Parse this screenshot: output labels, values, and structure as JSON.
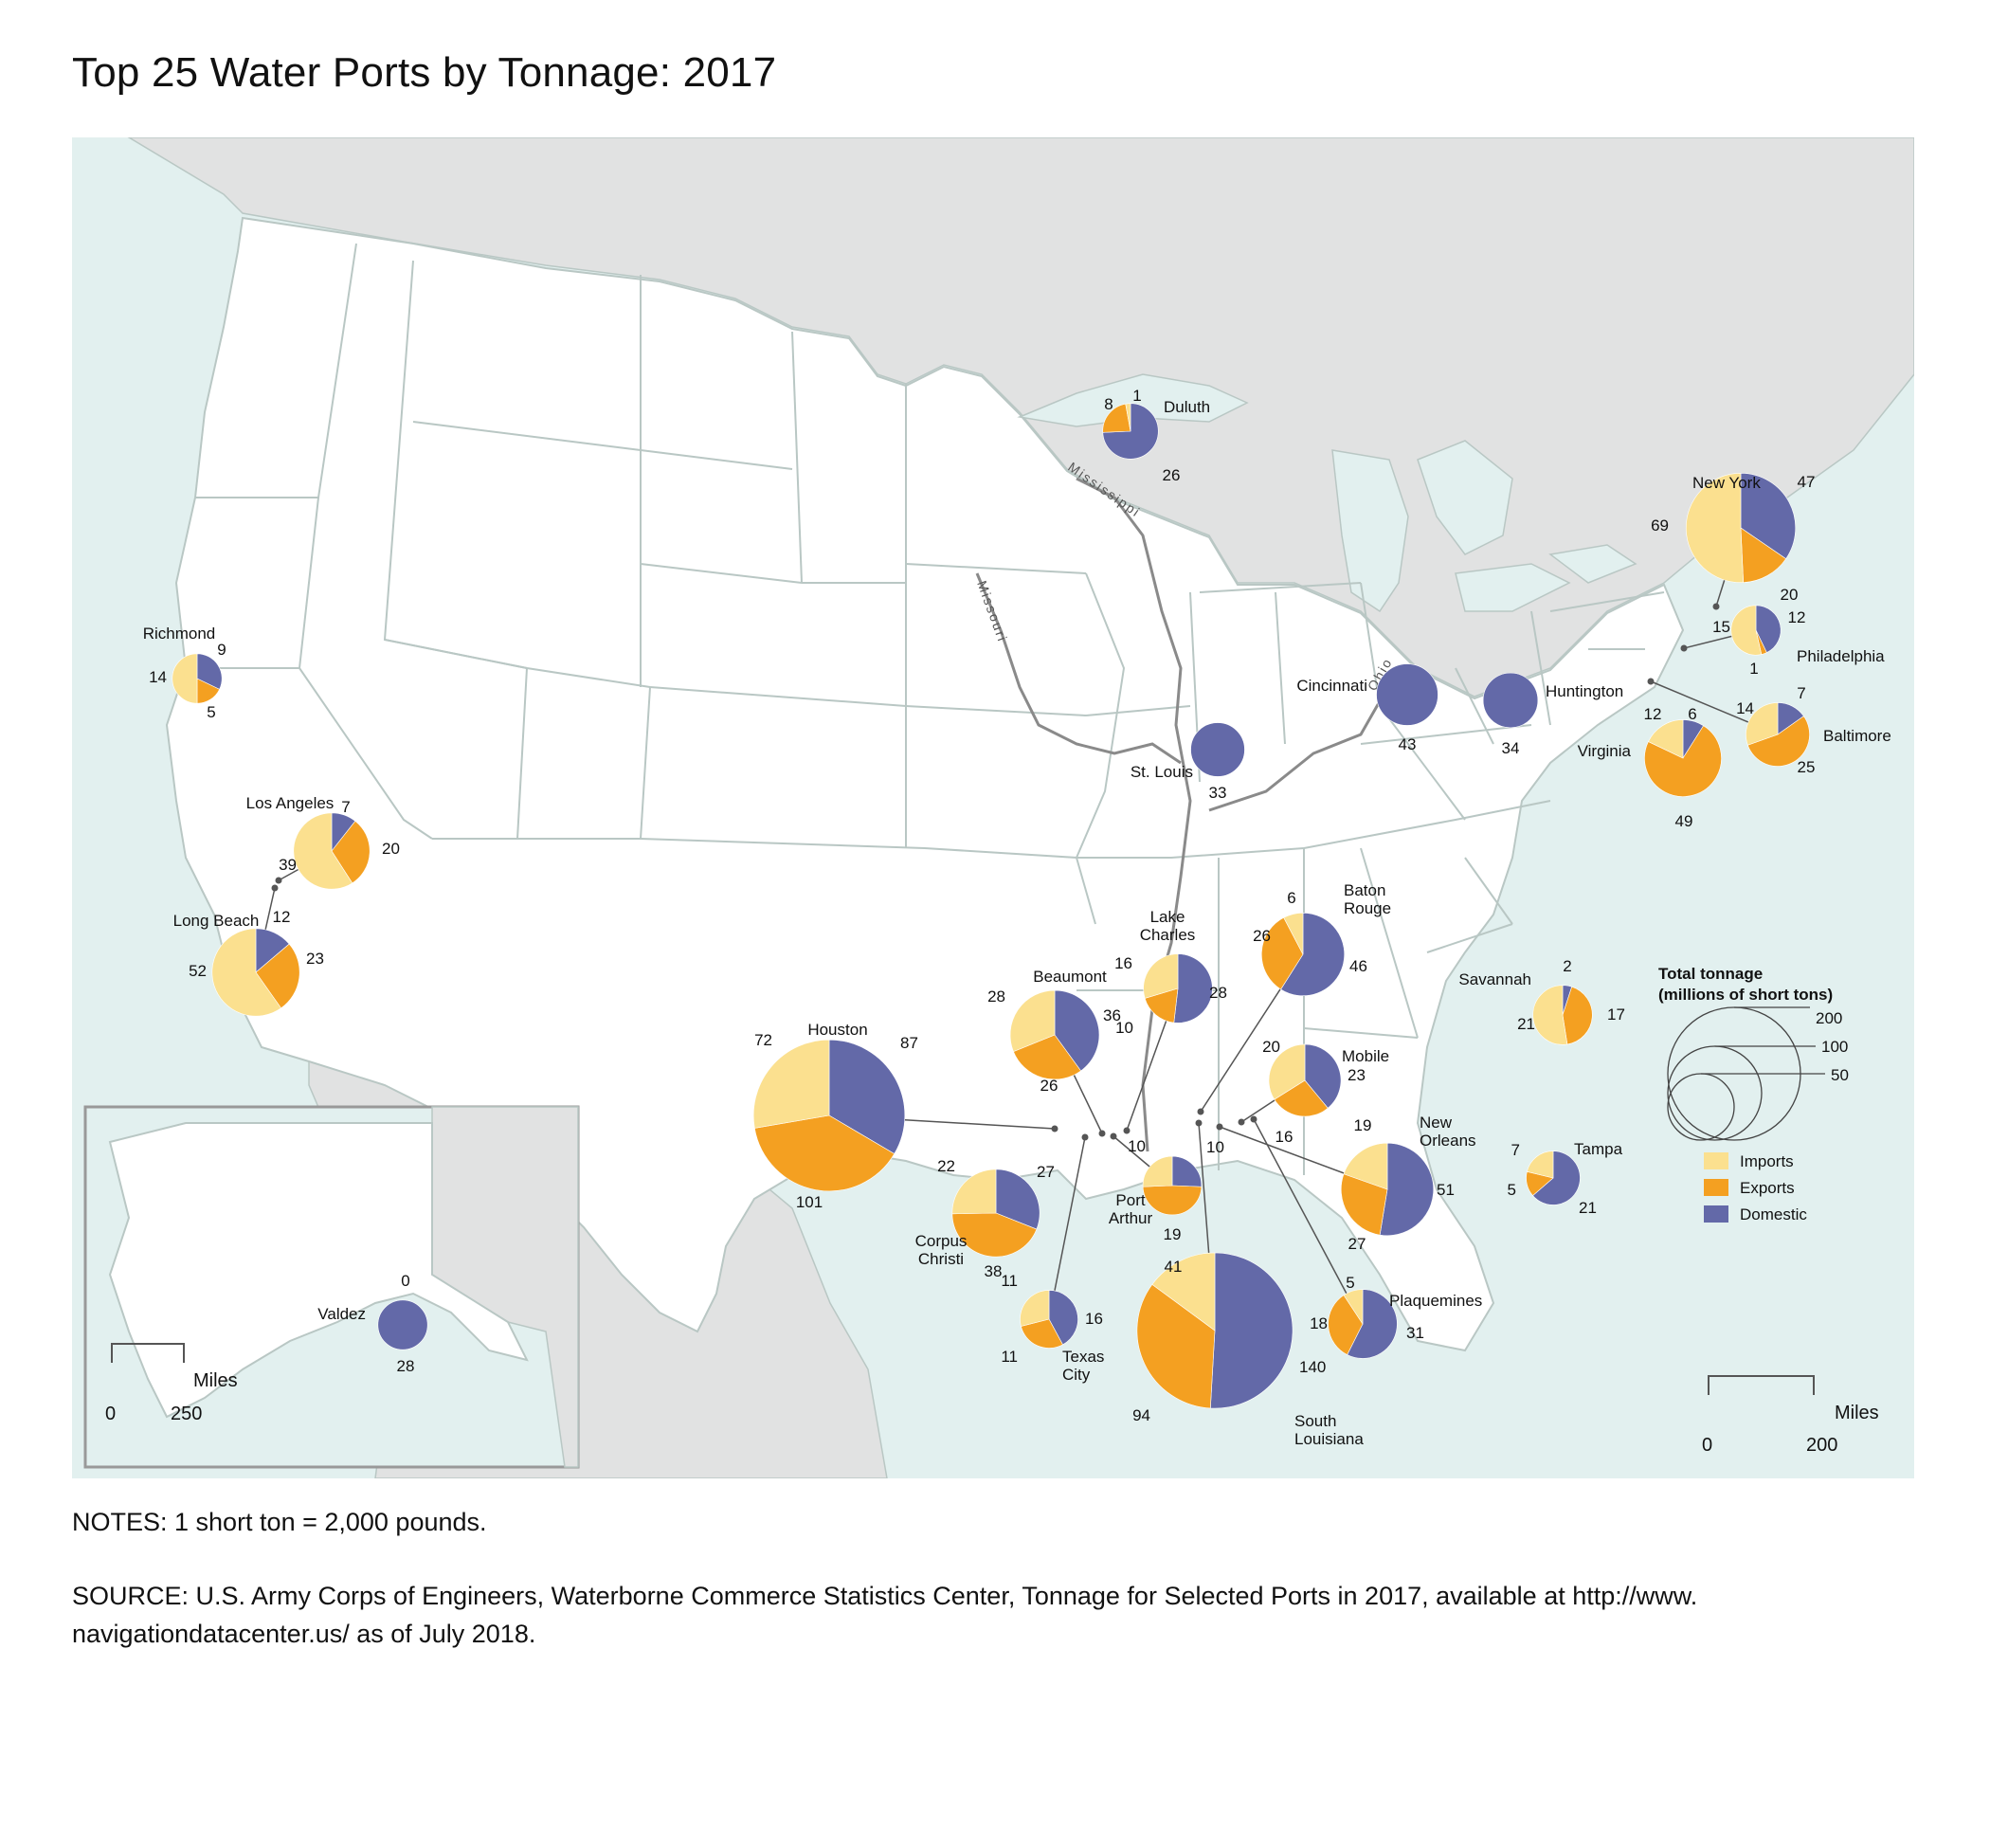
{
  "title": "Top 25 Water Ports by Tonnage: 2017",
  "notes": "NOTES: 1 short ton = 2,000 pounds.",
  "source": "SOURCE: U.S. Army Corps of Engineers, Waterborne Commerce Statistics Center, Tonnage for Selected Ports in 2017, available at http://www. navigationdatacenter.us/ as of July 2018.",
  "colors": {
    "imports": "#fbe08f",
    "exports": "#f4a021",
    "domestic": "#6369a8",
    "water": "#e2f0ef",
    "land_other": "#e1e2e2",
    "land_us": "#ffffff",
    "borders": "#b9c7c4"
  },
  "legend": {
    "title_line1": "Total tonnage",
    "title_line2": "(millions of short tons)",
    "sizes": [
      200,
      100,
      50
    ],
    "items": [
      {
        "label": "Imports",
        "color": "#fbe08f"
      },
      {
        "label": "Exports",
        "color": "#f4a021"
      },
      {
        "label": "Domestic",
        "color": "#6369a8"
      }
    ]
  },
  "scale_main": {
    "label": "Miles",
    "start": "0",
    "end": "200"
  },
  "scale_inset": {
    "label": "Miles",
    "start": "0",
    "end": "250"
  },
  "rivers": [
    "Mississippi",
    "Missouri",
    "Ohio"
  ],
  "chart_data": {
    "type": "pie",
    "title": "Top 25 Water Ports by Tonnage: 2017",
    "units": "millions of short tons",
    "categories": [
      "Imports",
      "Exports",
      "Domestic"
    ],
    "ports": [
      {
        "name": "Duluth",
        "imports": 1,
        "exports": 8,
        "domestic": 26
      },
      {
        "name": "New York",
        "imports": 69,
        "exports": 20,
        "domestic": 47
      },
      {
        "name": "Philadelphia",
        "imports": 15,
        "exports": 1,
        "domestic": 12
      },
      {
        "name": "Baltimore",
        "imports": 14,
        "exports": 25,
        "domestic": 7
      },
      {
        "name": "Virginia",
        "imports": 12,
        "exports": 49,
        "domestic": 6
      },
      {
        "name": "Cincinnati",
        "imports": 0,
        "exports": 0,
        "domestic": 43
      },
      {
        "name": "Huntington",
        "imports": 0,
        "exports": 0,
        "domestic": 34
      },
      {
        "name": "St. Louis",
        "imports": 0,
        "exports": 0,
        "domestic": 33
      },
      {
        "name": "Richmond",
        "imports": 14,
        "exports": 5,
        "domestic": 9
      },
      {
        "name": "Los Angeles",
        "imports": 39,
        "exports": 20,
        "domestic": 7
      },
      {
        "name": "Long Beach",
        "imports": 52,
        "exports": 23,
        "domestic": 12
      },
      {
        "name": "Houston",
        "imports": 72,
        "exports": 101,
        "domestic": 87
      },
      {
        "name": "Beaumont",
        "imports": 28,
        "exports": 26,
        "domestic": 36
      },
      {
        "name": "Lake Charles",
        "imports": 16,
        "exports": 10,
        "domestic": 28
      },
      {
        "name": "Baton Rouge",
        "imports": 6,
        "exports": 26,
        "domestic": 46
      },
      {
        "name": "Savannah",
        "imports": 21,
        "exports": 17,
        "domestic": 2
      },
      {
        "name": "Mobile",
        "imports": 20,
        "exports": 16,
        "domestic": 23
      },
      {
        "name": "New Orleans",
        "imports": 19,
        "exports": 27,
        "domestic": 51
      },
      {
        "name": "Tampa",
        "imports": 7,
        "exports": 5,
        "domestic": 21
      },
      {
        "name": "Port Arthur",
        "imports": 10,
        "exports": 19,
        "domestic": 10
      },
      {
        "name": "Corpus Christi",
        "imports": 22,
        "exports": 38,
        "domestic": 27
      },
      {
        "name": "Texas City",
        "imports": 11,
        "exports": 11,
        "domestic": 16
      },
      {
        "name": "South Louisiana",
        "imports": 41,
        "exports": 94,
        "domestic": 140
      },
      {
        "name": "Plaquemines",
        "imports": 5,
        "exports": 18,
        "domestic": 31
      },
      {
        "name": "Valdez",
        "imports": 0,
        "exports": 0,
        "domestic": 28
      }
    ]
  }
}
